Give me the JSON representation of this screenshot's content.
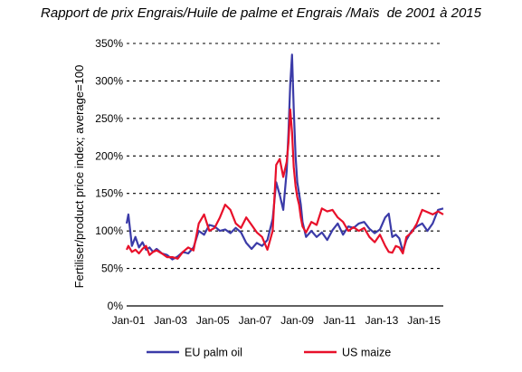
{
  "chart_data": {
    "type": "line",
    "title": "Rapport de prix Engrais/Huile de palme et Engrais /Maïs  de 2001 à 2015",
    "ylabel": "Fertiliser/product price index; average=100",
    "xlabel": "",
    "y_unit": "%",
    "ylim": [
      0,
      350
    ],
    "yticks": [
      0,
      50,
      100,
      150,
      200,
      250,
      300,
      350
    ],
    "ytick_labels": [
      "0%",
      "50%",
      "100%",
      "150%",
      "200%",
      "250%",
      "300%",
      "350%"
    ],
    "xlim": [
      "2000-12",
      "2015-12"
    ],
    "xticks": [
      "Jan-01",
      "Jan-03",
      "Jan-05",
      "Jan-07",
      "Jan-09",
      "Jan-11",
      "Jan-13",
      "Jan-15"
    ],
    "grid": "horizontal dashed",
    "legend_position": "bottom",
    "series": [
      {
        "name": "EU palm oil",
        "color": "#3b3ba8",
        "x": [
          "2000-12",
          "2001-01",
          "2001-03",
          "2001-05",
          "2001-07",
          "2001-09",
          "2001-11",
          "2002-01",
          "2002-03",
          "2002-05",
          "2002-08",
          "2002-11",
          "2003-02",
          "2003-05",
          "2003-08",
          "2003-11",
          "2004-02",
          "2004-05",
          "2004-08",
          "2004-11",
          "2005-02",
          "2005-05",
          "2005-08",
          "2005-11",
          "2006-02",
          "2006-05",
          "2006-08",
          "2006-11",
          "2007-02",
          "2007-05",
          "2007-08",
          "2007-11",
          "2008-01",
          "2008-03",
          "2008-05",
          "2008-07",
          "2008-08",
          "2008-09",
          "2008-10",
          "2008-11",
          "2008-12",
          "2009-01",
          "2009-02",
          "2009-03",
          "2009-04",
          "2009-06",
          "2009-09",
          "2009-12",
          "2010-03",
          "2010-06",
          "2010-09",
          "2010-12",
          "2011-03",
          "2011-06",
          "2011-09",
          "2011-12",
          "2012-03",
          "2012-06",
          "2012-09",
          "2012-12",
          "2013-03",
          "2013-05",
          "2013-07",
          "2013-09",
          "2013-11",
          "2014-01",
          "2014-03",
          "2014-06",
          "2014-09",
          "2014-12",
          "2015-03",
          "2015-06",
          "2015-09",
          "2015-12"
        ],
        "y": [
          110,
          122,
          80,
          92,
          78,
          85,
          75,
          78,
          72,
          76,
          70,
          68,
          62,
          66,
          72,
          70,
          78,
          100,
          95,
          108,
          106,
          100,
          102,
          97,
          104,
          98,
          84,
          76,
          84,
          80,
          88,
          116,
          165,
          148,
          128,
          180,
          232,
          295,
          335,
          262,
          200,
          165,
          150,
          135,
          112,
          92,
          100,
          92,
          98,
          88,
          101,
          110,
          95,
          106,
          104,
          110,
          112,
          103,
          97,
          102,
          118,
          123,
          92,
          95,
          90,
          73,
          88,
          100,
          106,
          110,
          100,
          110,
          128,
          130
        ]
      },
      {
        "name": "US maize",
        "color": "#e8102a",
        "x": [
          "2000-12",
          "2001-01",
          "2001-03",
          "2001-05",
          "2001-07",
          "2001-09",
          "2001-11",
          "2002-01",
          "2002-03",
          "2002-05",
          "2002-08",
          "2002-11",
          "2003-02",
          "2003-05",
          "2003-08",
          "2003-11",
          "2004-02",
          "2004-05",
          "2004-08",
          "2004-11",
          "2005-02",
          "2005-05",
          "2005-08",
          "2005-11",
          "2006-02",
          "2006-05",
          "2006-08",
          "2006-11",
          "2007-02",
          "2007-05",
          "2007-08",
          "2007-11",
          "2008-01",
          "2008-03",
          "2008-05",
          "2008-07",
          "2008-08",
          "2008-09",
          "2008-10",
          "2008-11",
          "2008-12",
          "2009-01",
          "2009-02",
          "2009-03",
          "2009-04",
          "2009-06",
          "2009-09",
          "2009-12",
          "2010-03",
          "2010-06",
          "2010-09",
          "2010-12",
          "2011-03",
          "2011-06",
          "2011-09",
          "2011-12",
          "2012-03",
          "2012-06",
          "2012-09",
          "2012-12",
          "2013-03",
          "2013-05",
          "2013-07",
          "2013-09",
          "2013-11",
          "2014-01",
          "2014-03",
          "2014-06",
          "2014-09",
          "2014-12",
          "2015-03",
          "2015-06",
          "2015-09",
          "2015-12"
        ],
        "y": [
          75,
          80,
          72,
          75,
          70,
          76,
          80,
          68,
          72,
          74,
          70,
          65,
          65,
          63,
          72,
          78,
          74,
          110,
          122,
          100,
          104,
          118,
          135,
          128,
          110,
          104,
          118,
          108,
          98,
          92,
          75,
          100,
          188,
          196,
          172,
          192,
          218,
          262,
          232,
          185,
          160,
          145,
          135,
          118,
          106,
          98,
          112,
          108,
          130,
          126,
          128,
          118,
          112,
          100,
          105,
          100,
          104,
          92,
          85,
          95,
          80,
          72,
          71,
          80,
          78,
          70,
          92,
          98,
          110,
          128,
          125,
          122,
          126,
          122
        ]
      }
    ]
  }
}
